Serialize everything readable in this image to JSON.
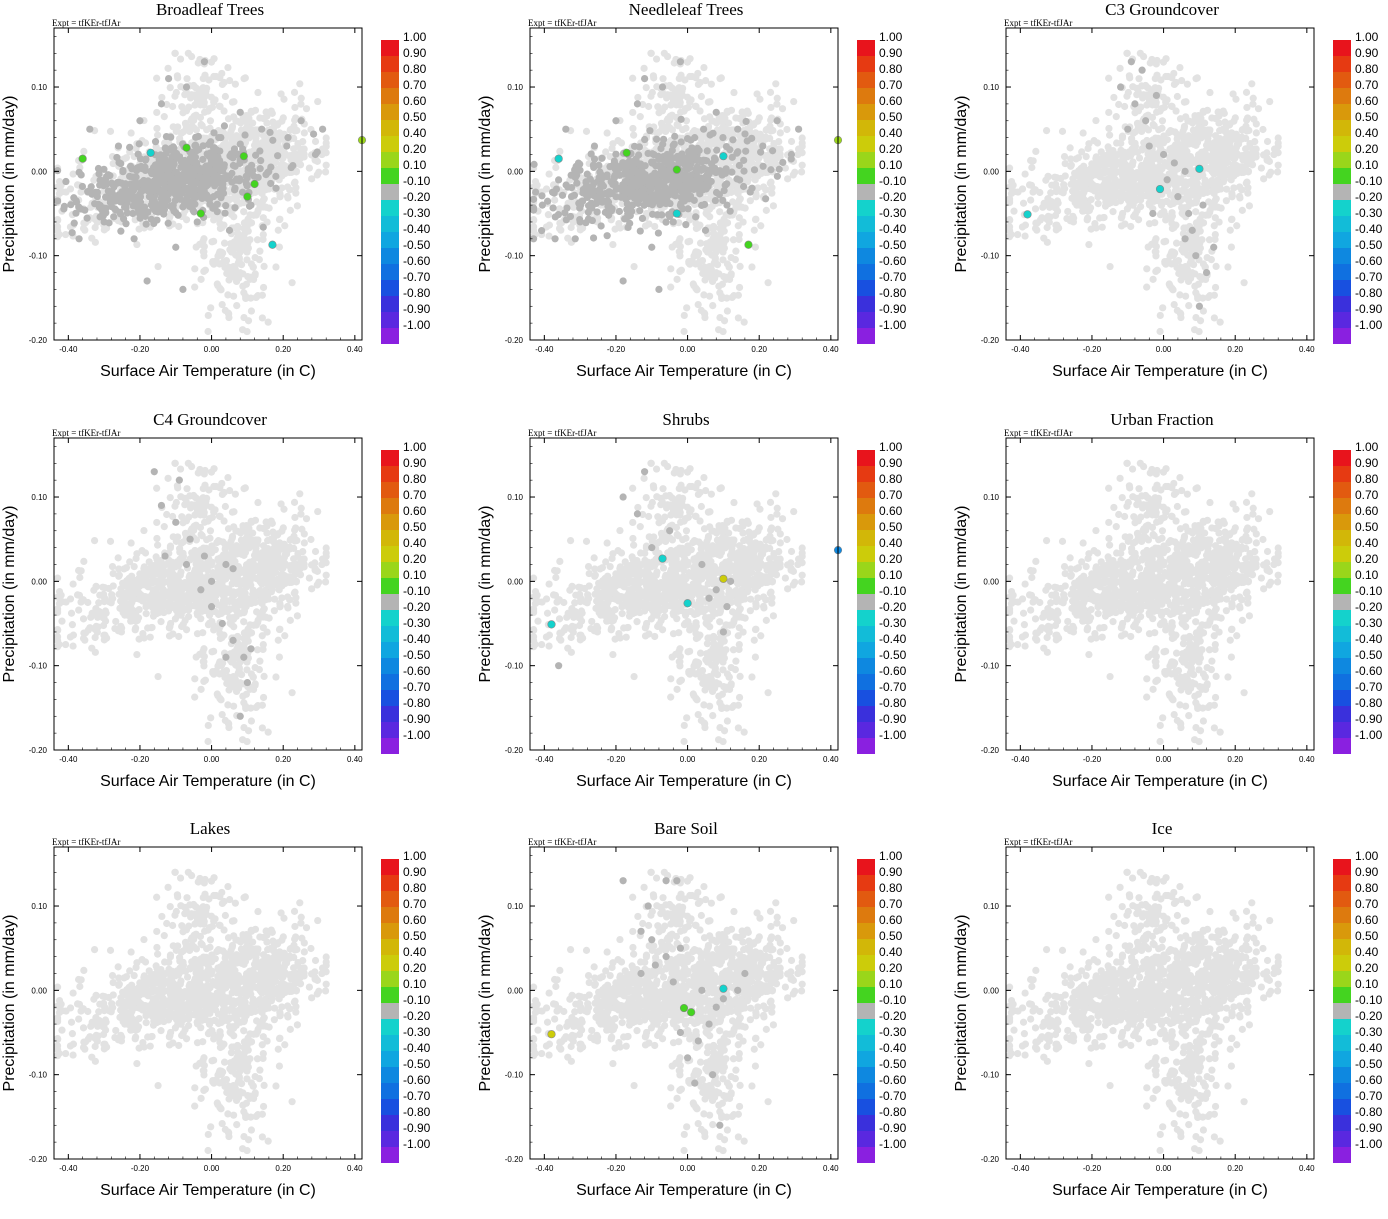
{
  "figure": {
    "expt_label": "Expt = tfKEr-tfJAr",
    "xlabel": "Surface Air Temperature (in C)",
    "ylabel": "Precipitation (in mm/day)",
    "xticks": [
      "-0.40",
      "-0.20",
      "0.00",
      "0.20",
      "0.40"
    ],
    "yticks": [
      "0.10",
      "0.00",
      "-0.10",
      "-0.20"
    ],
    "xlim": [
      -0.44,
      0.42
    ],
    "ylim": [
      -0.2,
      0.17
    ],
    "colorbar": {
      "labels": [
        "1.00",
        "0.90",
        "0.80",
        "0.70",
        "0.60",
        "0.50",
        "0.40",
        "0.20",
        "0.10",
        "-0.10",
        "-0.20",
        "-0.30",
        "-0.40",
        "-0.50",
        "-0.60",
        "-0.70",
        "-0.80",
        "-0.90",
        "-1.00"
      ],
      "colors": [
        "#e8141c",
        "#e63a12",
        "#e25a10",
        "#dd7a0e",
        "#d9990b",
        "#d2b708",
        "#cccc0a",
        "#9ad61a",
        "#44d420",
        "#b4b4b4",
        "#14d2cc",
        "#12bcd8",
        "#10a6e0",
        "#0e88e0",
        "#1070e0",
        "#1850e0",
        "#3a30dc",
        "#5a28e0",
        "#8a20e0"
      ]
    },
    "colors": {
      "background_point": "#e2e2e2",
      "highlight_gray": "#b4b4b4",
      "frame": "#000000"
    }
  },
  "chart_data": [
    {
      "type": "scatter",
      "title": "Broadleaf Trees",
      "xlabel": "Surface Air Temperature (in C)",
      "ylabel": "Precipitation (in mm/day)",
      "xlim": [
        -0.44,
        0.42
      ],
      "ylim": [
        -0.2,
        0.17
      ],
      "gray_highlight": "broad",
      "gray_points": [
        [
          -0.34,
          0.05
        ],
        [
          -0.3,
          -0.06
        ],
        [
          -0.26,
          0.03
        ],
        [
          -0.22,
          -0.05
        ],
        [
          -0.2,
          0.06
        ],
        [
          -0.17,
          0.0
        ],
        [
          -0.14,
          0.08
        ],
        [
          -0.1,
          -0.09
        ],
        [
          -0.07,
          0.1
        ],
        [
          -0.04,
          -0.06
        ],
        [
          -0.02,
          0.13
        ],
        [
          0.02,
          0.04
        ],
        [
          0.05,
          -0.07
        ],
        [
          0.08,
          0.07
        ],
        [
          0.11,
          -0.04
        ],
        [
          0.14,
          0.05
        ],
        [
          0.18,
          -0.02
        ],
        [
          0.21,
          0.03
        ],
        [
          0.25,
          0.06
        ],
        [
          0.29,
          0.02
        ],
        [
          0.31,
          0.05
        ],
        [
          -0.37,
          -0.08
        ],
        [
          -0.18,
          -0.13
        ],
        [
          -0.08,
          -0.14
        ],
        [
          -0.12,
          0.11
        ]
      ],
      "colored_points": [
        {
          "x": -0.36,
          "y": 0.015,
          "value": 0.1
        },
        {
          "x": -0.17,
          "y": 0.022,
          "value": -0.2
        },
        {
          "x": -0.07,
          "y": 0.028,
          "value": 0.1
        },
        {
          "x": 0.09,
          "y": 0.018,
          "value": 0.1
        },
        {
          "x": 0.12,
          "y": -0.015,
          "value": 0.1
        },
        {
          "x": 0.1,
          "y": -0.03,
          "value": 0.1
        },
        {
          "x": -0.03,
          "y": -0.05,
          "value": 0.1
        },
        {
          "x": 0.17,
          "y": -0.087,
          "value": -0.2
        },
        {
          "x": 0.42,
          "y": 0.037,
          "value": 0.2
        }
      ]
    },
    {
      "type": "scatter",
      "title": "Needleleaf Trees",
      "xlabel": "Surface Air Temperature (in C)",
      "ylabel": "Precipitation (in mm/day)",
      "xlim": [
        -0.44,
        0.42
      ],
      "ylim": [
        -0.2,
        0.17
      ],
      "gray_highlight": "broad",
      "gray_points": [
        [
          -0.34,
          0.05
        ],
        [
          -0.3,
          -0.06
        ],
        [
          -0.26,
          0.03
        ],
        [
          -0.22,
          -0.05
        ],
        [
          -0.2,
          0.06
        ],
        [
          -0.17,
          0.0
        ],
        [
          -0.14,
          0.08
        ],
        [
          -0.1,
          -0.09
        ],
        [
          -0.07,
          0.1
        ],
        [
          -0.04,
          -0.06
        ],
        [
          -0.02,
          0.13
        ],
        [
          0.02,
          0.04
        ],
        [
          0.05,
          -0.07
        ],
        [
          0.08,
          0.07
        ],
        [
          0.11,
          -0.04
        ],
        [
          0.14,
          0.05
        ],
        [
          0.18,
          -0.02
        ],
        [
          0.21,
          0.03
        ],
        [
          0.25,
          0.06
        ],
        [
          0.29,
          0.02
        ],
        [
          0.31,
          0.05
        ],
        [
          -0.37,
          -0.08
        ],
        [
          -0.18,
          -0.13
        ],
        [
          -0.08,
          -0.14
        ],
        [
          -0.12,
          0.11
        ]
      ],
      "colored_points": [
        {
          "x": -0.36,
          "y": 0.015,
          "value": -0.2
        },
        {
          "x": -0.17,
          "y": 0.022,
          "value": 0.1
        },
        {
          "x": -0.03,
          "y": 0.002,
          "value": 0.1
        },
        {
          "x": 0.1,
          "y": 0.018,
          "value": -0.2
        },
        {
          "x": -0.03,
          "y": -0.05,
          "value": -0.2
        },
        {
          "x": 0.17,
          "y": -0.087,
          "value": 0.1
        },
        {
          "x": 0.42,
          "y": 0.037,
          "value": 0.2
        }
      ]
    },
    {
      "type": "scatter",
      "title": "C3 Groundcover",
      "xlabel": "Surface Air Temperature (in C)",
      "ylabel": "Precipitation (in mm/day)",
      "xlim": [
        -0.44,
        0.42
      ],
      "ylim": [
        -0.2,
        0.17
      ],
      "gray_highlight": "band",
      "gray_points": [
        [
          -0.09,
          0.13
        ],
        [
          -0.06,
          0.12
        ],
        [
          -0.12,
          0.1
        ],
        [
          -0.08,
          0.08
        ],
        [
          -0.05,
          0.06
        ],
        [
          -0.1,
          0.05
        ],
        [
          -0.04,
          0.03
        ],
        [
          0.0,
          0.02
        ],
        [
          0.03,
          0.01
        ],
        [
          0.06,
          0.0
        ],
        [
          0.01,
          -0.01
        ],
        [
          0.04,
          -0.03
        ],
        [
          0.07,
          -0.05
        ],
        [
          0.06,
          -0.08
        ],
        [
          0.09,
          -0.1
        ],
        [
          0.12,
          -0.12
        ],
        [
          0.08,
          -0.07
        ],
        [
          0.11,
          -0.04
        ],
        [
          0.14,
          -0.09
        ],
        [
          -0.02,
          0.09
        ],
        [
          0.1,
          -0.16
        ],
        [
          -0.03,
          -0.05
        ]
      ],
      "colored_points": [
        {
          "x": -0.38,
          "y": -0.051,
          "value": -0.2
        },
        {
          "x": -0.01,
          "y": -0.021,
          "value": -0.2
        },
        {
          "x": 0.1,
          "y": 0.003,
          "value": -0.2
        }
      ]
    },
    {
      "type": "scatter",
      "title": "C4 Groundcover",
      "xlabel": "Surface Air Temperature (in C)",
      "ylabel": "Precipitation (in mm/day)",
      "xlim": [
        -0.44,
        0.42
      ],
      "ylim": [
        -0.2,
        0.17
      ],
      "gray_highlight": "band",
      "gray_points": [
        [
          -0.16,
          0.13
        ],
        [
          -0.09,
          0.12
        ],
        [
          -0.14,
          0.09
        ],
        [
          -0.1,
          0.07
        ],
        [
          -0.06,
          0.05
        ],
        [
          -0.13,
          0.03
        ],
        [
          -0.07,
          0.02
        ],
        [
          -0.02,
          0.03
        ],
        [
          0.04,
          0.02
        ],
        [
          0.06,
          0.015
        ],
        [
          -0.03,
          -0.01
        ],
        [
          0.0,
          -0.03
        ],
        [
          0.03,
          -0.05
        ],
        [
          0.06,
          -0.07
        ],
        [
          0.09,
          -0.09
        ],
        [
          0.1,
          -0.12
        ],
        [
          0.08,
          -0.16
        ],
        [
          0.04,
          -0.09
        ],
        [
          0.11,
          -0.08
        ],
        [
          0.0,
          0.0
        ]
      ],
      "colored_points": []
    },
    {
      "type": "scatter",
      "title": "Shrubs",
      "xlabel": "Surface Air Temperature (in C)",
      "ylabel": "Precipitation (in mm/day)",
      "xlim": [
        -0.44,
        0.42
      ],
      "ylim": [
        -0.2,
        0.17
      ],
      "gray_highlight": "sparse",
      "gray_points": [
        [
          -0.18,
          0.1
        ],
        [
          -0.14,
          0.08
        ],
        [
          -0.12,
          0.13
        ],
        [
          -0.1,
          0.04
        ],
        [
          -0.05,
          0.06
        ],
        [
          0.04,
          0.02
        ],
        [
          0.08,
          -0.01
        ],
        [
          0.11,
          -0.03
        ],
        [
          0.12,
          0.0
        ],
        [
          0.06,
          -0.02
        ],
        [
          -0.36,
          -0.1
        ],
        [
          0.1,
          -0.06
        ]
      ],
      "colored_points": [
        {
          "x": -0.38,
          "y": -0.051,
          "value": -0.2
        },
        {
          "x": -0.07,
          "y": 0.027,
          "value": -0.2
        },
        {
          "x": 0.0,
          "y": -0.026,
          "value": -0.2
        },
        {
          "x": 0.1,
          "y": 0.003,
          "value": 0.4
        },
        {
          "x": 0.42,
          "y": 0.037,
          "value": -0.5
        }
      ]
    },
    {
      "type": "scatter",
      "title": "Urban Fraction",
      "xlabel": "Surface Air Temperature (in C)",
      "ylabel": "Precipitation (in mm/day)",
      "xlim": [
        -0.44,
        0.42
      ],
      "ylim": [
        -0.2,
        0.17
      ],
      "gray_highlight": "none",
      "gray_points": [],
      "colored_points": []
    },
    {
      "type": "scatter",
      "title": "Lakes",
      "xlabel": "Surface Air Temperature (in C)",
      "ylabel": "Precipitation (in mm/day)",
      "xlim": [
        -0.44,
        0.42
      ],
      "ylim": [
        -0.2,
        0.17
      ],
      "gray_highlight": "none",
      "gray_points": [],
      "colored_points": []
    },
    {
      "type": "scatter",
      "title": "Bare Soil",
      "xlabel": "Surface Air Temperature (in C)",
      "ylabel": "Precipitation (in mm/day)",
      "xlim": [
        -0.44,
        0.42
      ],
      "ylim": [
        -0.2,
        0.17
      ],
      "gray_highlight": "band",
      "gray_points": [
        [
          -0.18,
          0.13
        ],
        [
          -0.11,
          0.1
        ],
        [
          -0.13,
          0.07
        ],
        [
          -0.06,
          0.13
        ],
        [
          -0.03,
          0.13
        ],
        [
          -0.1,
          0.06
        ],
        [
          -0.06,
          0.04
        ],
        [
          -0.02,
          0.05
        ],
        [
          -0.13,
          0.02
        ],
        [
          -0.09,
          0.03
        ],
        [
          -0.04,
          0.01
        ],
        [
          0.04,
          0.0
        ],
        [
          0.08,
          -0.02
        ],
        [
          0.1,
          -0.01
        ],
        [
          0.14,
          0.0
        ],
        [
          0.16,
          0.02
        ],
        [
          0.06,
          -0.04
        ],
        [
          0.03,
          -0.06
        ],
        [
          0.0,
          -0.08
        ],
        [
          -0.02,
          -0.05
        ],
        [
          0.07,
          -0.1
        ],
        [
          0.02,
          -0.11
        ],
        [
          0.09,
          -0.16
        ]
      ],
      "colored_points": [
        {
          "x": -0.38,
          "y": -0.052,
          "value": 0.4
        },
        {
          "x": -0.01,
          "y": -0.021,
          "value": 0.1
        },
        {
          "x": 0.01,
          "y": -0.026,
          "value": 0.1
        },
        {
          "x": 0.1,
          "y": 0.002,
          "value": -0.2
        }
      ]
    },
    {
      "type": "scatter",
      "title": "Ice",
      "xlabel": "Surface Air Temperature (in C)",
      "ylabel": "Precipitation (in mm/day)",
      "xlim": [
        -0.44,
        0.42
      ],
      "ylim": [
        -0.2,
        0.17
      ],
      "gray_highlight": "none",
      "gray_points": [],
      "colored_points": []
    }
  ]
}
